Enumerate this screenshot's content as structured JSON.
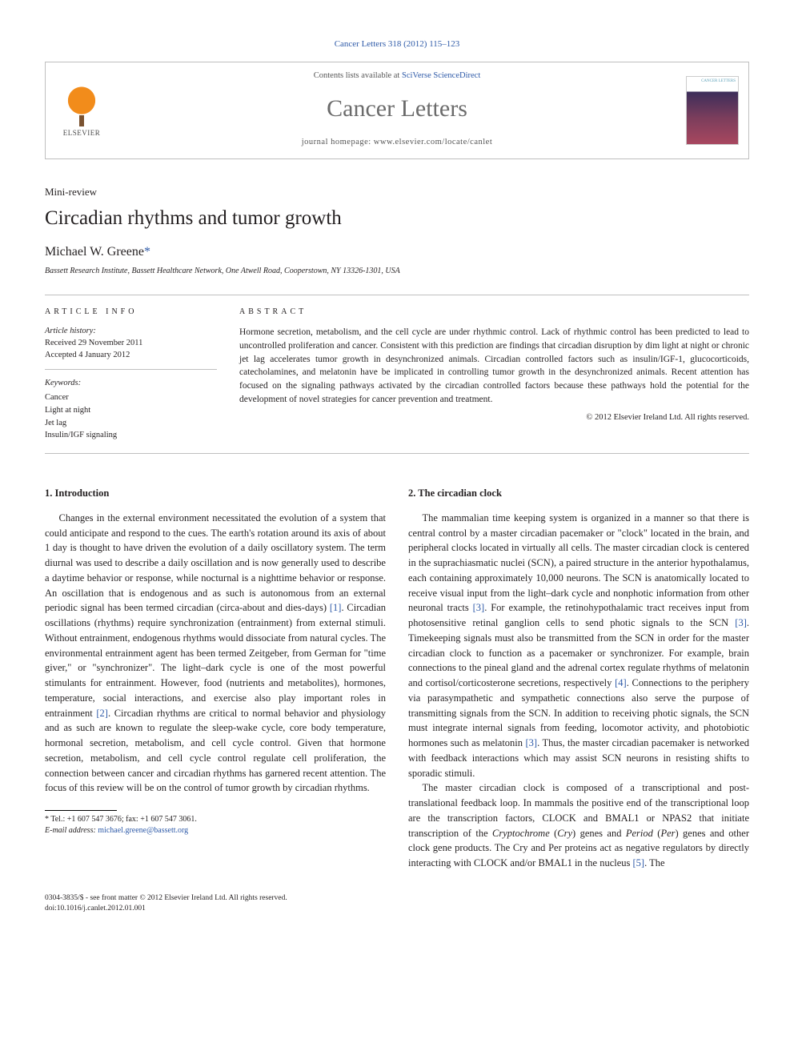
{
  "citation": "Cancer Letters 318 (2012) 115–123",
  "header": {
    "contents_prefix": "Contents lists available at ",
    "contents_link": "SciVerse ScienceDirect",
    "journal": "Cancer Letters",
    "homepage": "journal homepage: www.elsevier.com/locate/canlet",
    "publisher_logo_text": "ELSEVIER"
  },
  "article": {
    "type": "Mini-review",
    "title": "Circadian rhythms and tumor growth",
    "author": "Michael W. Greene",
    "author_marker": "*",
    "affiliation": "Bassett Research Institute, Bassett Healthcare Network, One Atwell Road, Cooperstown, NY 13326-1301, USA"
  },
  "info": {
    "heading": "ARTICLE INFO",
    "history_label": "Article history:",
    "received": "Received 29 November 2011",
    "accepted": "Accepted 4 January 2012",
    "keywords_label": "Keywords:",
    "keywords": [
      "Cancer",
      "Light at night",
      "Jet lag",
      "Insulin/IGF signaling"
    ]
  },
  "abstract": {
    "heading": "ABSTRACT",
    "text": "Hormone secretion, metabolism, and the cell cycle are under rhythmic control. Lack of rhythmic control has been predicted to lead to uncontrolled proliferation and cancer. Consistent with this prediction are findings that circadian disruption by dim light at night or chronic jet lag accelerates tumor growth in desynchronized animals. Circadian controlled factors such as insulin/IGF-1, glucocorticoids, catecholamines, and melatonin have be implicated in controlling tumor growth in the desynchronized animals. Recent attention has focused on the signaling pathways activated by the circadian controlled factors because these pathways hold the potential for the development of novel strategies for cancer prevention and treatment.",
    "copyright": "© 2012 Elsevier Ireland Ltd. All rights reserved."
  },
  "sections": {
    "intro_heading": "1. Introduction",
    "intro_p1a": "Changes in the external environment necessitated the evolution of a system that could anticipate and respond to the cues. The earth's rotation around its axis of about 1 day is thought to have driven the evolution of a daily oscillatory system. The term diurnal was used to describe a daily oscillation and is now generally used to describe a daytime behavior or response, while nocturnal is a nighttime behavior or response. An oscillation that is endogenous and as such is autonomous from an external periodic signal has been termed circadian (circa-about and dies-days) ",
    "intro_ref1": "[1]",
    "intro_p1b": ". Circadian oscillations (rhythms) require synchronization (entrainment) from external stimuli. Without entrainment, endogenous rhythms would dissociate from natural cycles. The environmental entrainment agent has been termed Zeitgeber, from German for \"time giver,\" or \"synchronizer\". The light–dark cycle is one of the most powerful stimulants for entrainment. However, food (nutrients and metabolites), hormones, temperature, social interactions, and exercise also play important roles in entrainment ",
    "intro_ref2": "[2]",
    "intro_p1c": ". Circadian rhythms are critical to normal behavior and physiology and as such are known to regulate the sleep-wake cycle, core body temperature, hormonal secretion, metabolism, and cell cycle control. Given that hormone secretion, metabolism, and cell cycle control regulate cell proliferation, the connection between cancer and circadian rhythms has garnered recent attention. The focus of this review will be on the control of tumor growth by circadian rhythms.",
    "clock_heading": "2. The circadian clock",
    "clock_p1a": "The mammalian time keeping system is organized in a manner so that there is central control by a master circadian pacemaker or \"clock\" located in the brain, and peripheral clocks located in virtually all cells. The master circadian clock is centered in the suprachiasmatic nuclei (SCN), a paired structure in the anterior hypothalamus, each containing approximately 10,000 neurons. The SCN is anatomically located to receive visual input from the light–dark cycle and nonphotic information from other neuronal tracts ",
    "clock_ref3a": "[3]",
    "clock_p1b": ". For example, the retinohypothalamic tract receives input from photosensitive retinal ganglion cells to send photic signals to the SCN ",
    "clock_ref3b": "[3]",
    "clock_p1c": ". Timekeeping signals must also be transmitted from the SCN in order for the master circadian clock to function as a pacemaker or synchronizer. For example, brain connections to the pineal gland and the adrenal cortex regulate rhythms of melatonin and cortisol/corticosterone secretions, respectively ",
    "clock_ref4": "[4]",
    "clock_p1d": ". Connections to the periphery via parasympathetic and sympathetic connections also serve the purpose of transmitting signals from the SCN. In addition to receiving photic signals, the SCN must integrate internal signals from feeding, locomotor activity, and photobiotic hormones such as melatonin ",
    "clock_ref3c": "[3]",
    "clock_p1e": ". Thus, the master circadian pacemaker is networked with feedback interactions which may assist SCN neurons in resisting shifts to sporadic stimuli.",
    "clock_p2a": "The master circadian clock is composed of a transcriptional and post-translational feedback loop. In mammals the positive end of the transcriptional loop are the transcription factors, CLOCK and BMAL1 or NPAS2 that initiate transcription of the ",
    "clock_p2_cry": "Cryptochrome",
    "clock_p2b": " (",
    "clock_p2_crys": "Cry",
    "clock_p2c": ") genes and ",
    "clock_p2_per": "Period",
    "clock_p2d": " (",
    "clock_p2_pers": "Per",
    "clock_p2e": ") genes and other clock gene products. The Cry and Per proteins act as negative regulators by directly interacting with CLOCK and/or BMAL1 in the nucleus ",
    "clock_ref5": "[5]",
    "clock_p2f": ". The"
  },
  "footnote": {
    "tel_label": "* Tel.: +1 607 547 3676; fax: +1 607 547 3061.",
    "email_label": "E-mail address:",
    "email": "michael.greene@bassett.org"
  },
  "doi": {
    "line1": "0304-3835/$ - see front matter © 2012 Elsevier Ireland Ltd. All rights reserved.",
    "line2": "doi:10.1016/j.canlet.2012.01.001"
  },
  "colors": {
    "link": "#2e5aa8",
    "text": "#231f20",
    "rule": "#bfbfbf"
  }
}
